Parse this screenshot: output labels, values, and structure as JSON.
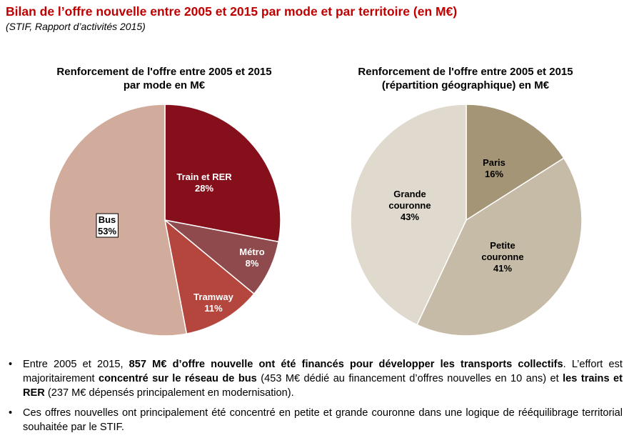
{
  "header": {
    "title": "Bilan de l’offre nouvelle entre 2005 et 2015 par mode et par territoire (en M€)",
    "source": "(STIF, Rapport d’activités 2015)"
  },
  "chart_data": [
    {
      "type": "pie",
      "title_line1": "Renforcement de l'offre entre 2005 et 2015",
      "title_line2": "par mode en M€",
      "slices": [
        {
          "label": "Train et RER",
          "value": 28,
          "value_label": "28%",
          "color": "#85101c"
        },
        {
          "label": "Métro",
          "value": 8,
          "value_label": "8%",
          "color": "#8e4a4c"
        },
        {
          "label": "Tramway",
          "value": 11,
          "value_label": "11%",
          "color": "#b4463e"
        },
        {
          "label": "Bus",
          "value": 53,
          "value_label": "53%",
          "color": "#d1ab9c"
        }
      ]
    },
    {
      "type": "pie",
      "title_line1": "Renforcement de l'offre entre 2005 et 2015",
      "title_line2": "(répartition géographique) en M€",
      "slices": [
        {
          "label": "Paris",
          "value": 16,
          "value_label": "16%",
          "color": "#a49576"
        },
        {
          "label": "Petite couronne",
          "value": 41,
          "value_label": "41%",
          "color": "#c6bba6"
        },
        {
          "label": "Grande couronne",
          "value": 43,
          "value_label": "43%",
          "color": "#dfd9ce"
        }
      ]
    }
  ],
  "bullets": [
    {
      "bullet": "•",
      "parts": [
        {
          "text": "Entre 2005 et 2015, ",
          "bold": false
        },
        {
          "text": "857 M€ d’offre nouvelle ont été financés pour développer les transports collectifs",
          "bold": true
        },
        {
          "text": ". L’effort est majoritairement ",
          "bold": false
        },
        {
          "text": "concentré sur le réseau de bus",
          "bold": true
        },
        {
          "text": " (453 M€ dédié au financement d’offres nouvelles en 10 ans) et ",
          "bold": false
        },
        {
          "text": "les trains et RER",
          "bold": true
        },
        {
          "text": " (237 M€ dépensés principalement en modernisation).",
          "bold": false
        }
      ]
    },
    {
      "bullet": "•",
      "parts": [
        {
          "text": "Ces offres nouvelles ont principalement été concentré en petite et grande couronne dans une logique de rééquilibrage territorial souhaitée par le STIF.",
          "bold": false
        }
      ]
    }
  ]
}
